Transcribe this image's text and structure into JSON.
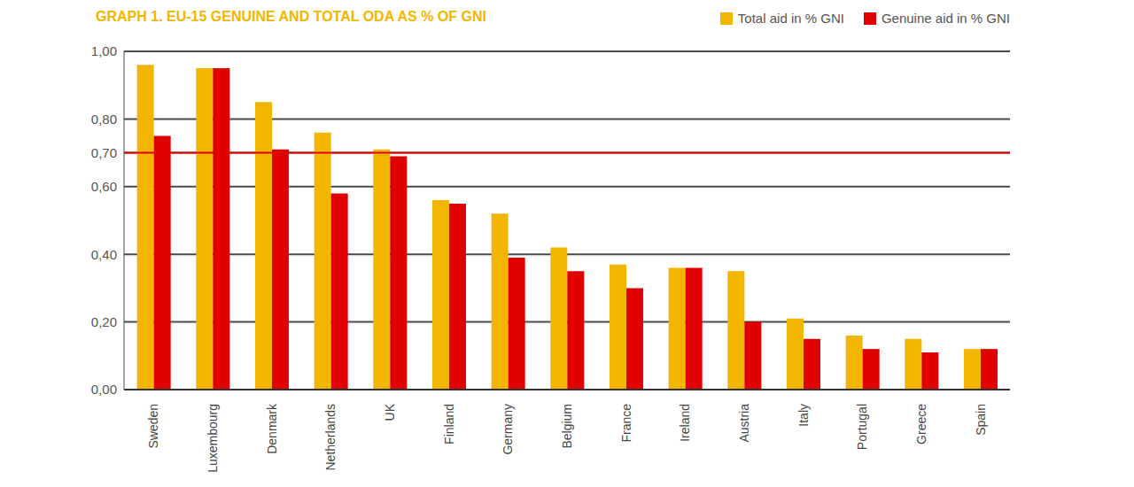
{
  "chart_data": {
    "type": "bar",
    "title": "GRAPH 1. EU-15 GENUINE AND TOTAL ODA AS % OF GNI",
    "categories": [
      "Sweden",
      "Luxembourg",
      "Denmark",
      "Netherlands",
      "UK",
      "Finland",
      "Germany",
      "Belgium",
      "France",
      "Ireland",
      "Austria",
      "Italy",
      "Portugal",
      "Greece",
      "Spain"
    ],
    "series": [
      {
        "name": "Total aid in % GNI",
        "color": "#f2b600",
        "values": [
          0.96,
          0.95,
          0.85,
          0.76,
          0.71,
          0.56,
          0.52,
          0.42,
          0.37,
          0.36,
          0.35,
          0.21,
          0.16,
          0.15,
          0.12
        ]
      },
      {
        "name": "Genuine aid in % GNI",
        "color": "#e00000",
        "values": [
          0.75,
          0.95,
          0.71,
          0.58,
          0.69,
          0.55,
          0.39,
          0.35,
          0.3,
          0.36,
          0.2,
          0.15,
          0.12,
          0.11,
          0.12
        ]
      }
    ],
    "ylim": [
      0,
      1
    ],
    "yticks": [
      {
        "value": 0,
        "label": "0,00"
      },
      {
        "value": 0.2,
        "label": "0,20"
      },
      {
        "value": 0.4,
        "label": "0,40"
      },
      {
        "value": 0.6,
        "label": "0,60"
      },
      {
        "value": 0.7,
        "label": "0,70"
      },
      {
        "value": 0.8,
        "label": "0,80"
      },
      {
        "value": 1,
        "label": "1,00"
      }
    ],
    "grid": true,
    "legend": "top-right",
    "target": 0.7
  }
}
